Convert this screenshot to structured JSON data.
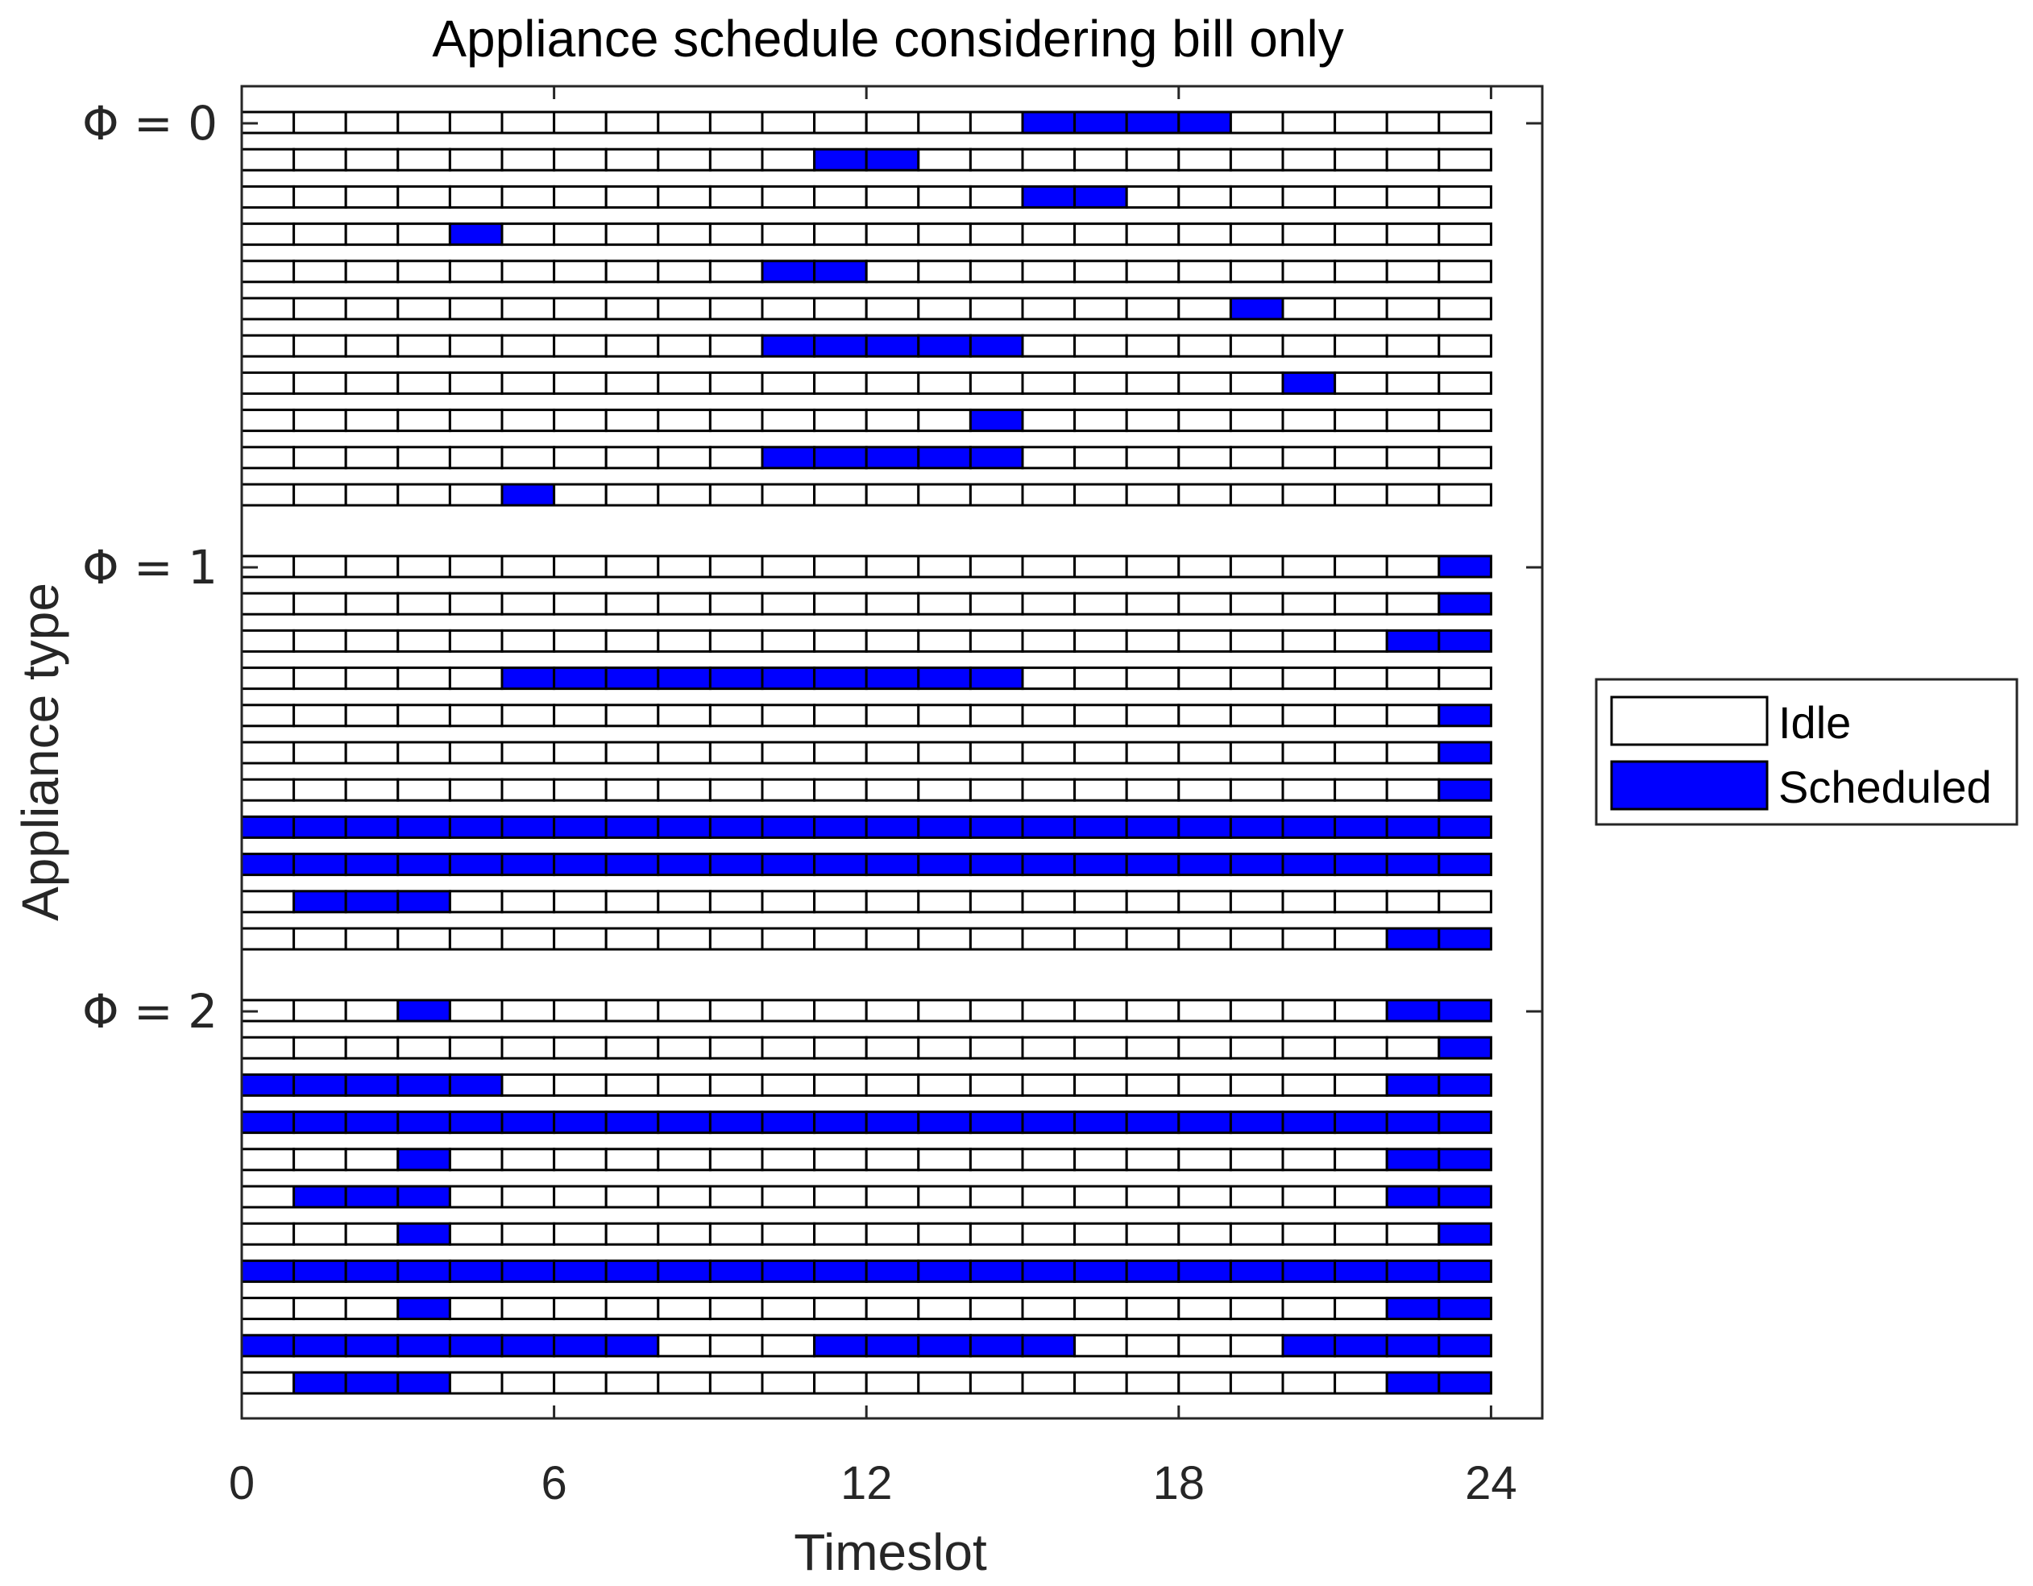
{
  "chart_data": {
    "type": "schedule-grid",
    "title": "Appliance schedule considering bill only",
    "xlabel": "Timeslot",
    "ylabel": "Appliance type",
    "xlim": [
      0,
      25
    ],
    "xticks": [
      0,
      6,
      12,
      18,
      24
    ],
    "num_slots": 24,
    "legend": {
      "position": "right",
      "entries": [
        {
          "label": "Idle",
          "color": "#ffffff"
        },
        {
          "label": "Scheduled",
          "color": "#0000ff"
        }
      ]
    },
    "groups": [
      {
        "label": "Φ = 0",
        "rows": [
          [
            [
              15,
              19
            ]
          ],
          [
            [
              11,
              13
            ]
          ],
          [
            [
              15,
              17
            ]
          ],
          [
            [
              4,
              5
            ]
          ],
          [
            [
              10,
              12
            ]
          ],
          [
            [
              19,
              20
            ]
          ],
          [
            [
              10,
              15
            ]
          ],
          [
            [
              20,
              21
            ]
          ],
          [
            [
              14,
              15
            ]
          ],
          [
            [
              10,
              15
            ]
          ],
          [
            [
              5,
              6
            ]
          ]
        ]
      },
      {
        "label": "Φ = 1",
        "rows": [
          [
            [
              23,
              24
            ]
          ],
          [
            [
              23,
              24
            ]
          ],
          [
            [
              22,
              24
            ]
          ],
          [
            [
              5,
              15
            ]
          ],
          [
            [
              23,
              24
            ]
          ],
          [
            [
              23,
              24
            ]
          ],
          [
            [
              23,
              24
            ]
          ],
          [
            [
              0,
              24
            ]
          ],
          [
            [
              0,
              24
            ]
          ],
          [
            [
              1,
              4
            ]
          ],
          [
            [
              22,
              24
            ]
          ]
        ]
      },
      {
        "label": "Φ = 2",
        "rows": [
          [
            [
              3,
              4
            ],
            [
              22,
              24
            ]
          ],
          [
            [
              23,
              24
            ]
          ],
          [
            [
              0,
              5
            ],
            [
              22,
              24
            ]
          ],
          [
            [
              0,
              24
            ]
          ],
          [
            [
              3,
              4
            ],
            [
              22,
              24
            ]
          ],
          [
            [
              1,
              4
            ],
            [
              22,
              24
            ]
          ],
          [
            [
              3,
              4
            ],
            [
              23,
              24
            ]
          ],
          [
            [
              0,
              24
            ]
          ],
          [
            [
              3,
              4
            ],
            [
              22,
              24
            ]
          ],
          [
            [
              0,
              8
            ],
            [
              11,
              16
            ],
            [
              20,
              24
            ]
          ],
          [
            [
              1,
              4
            ],
            [
              22,
              24
            ]
          ]
        ]
      }
    ]
  }
}
